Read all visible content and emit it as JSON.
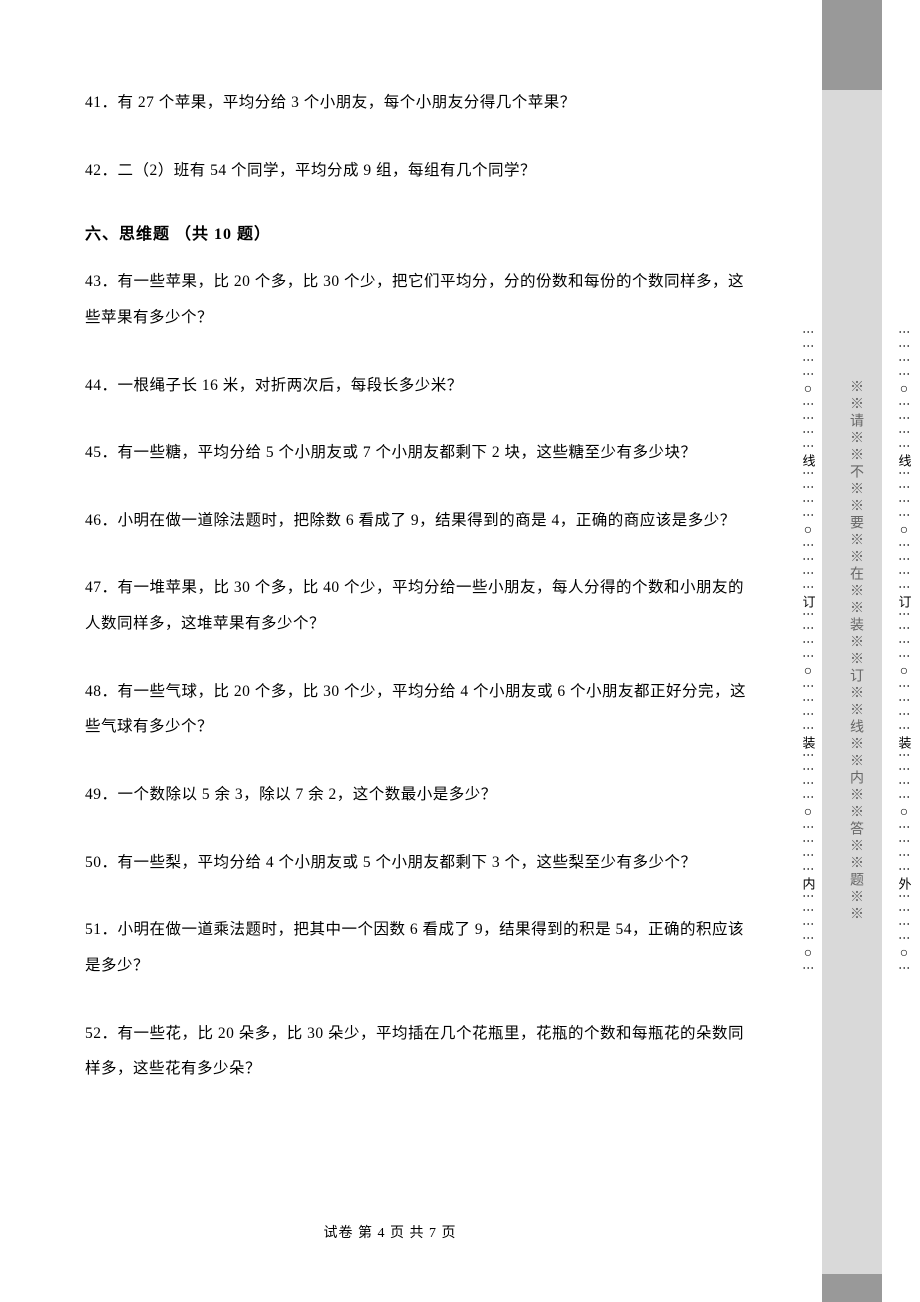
{
  "questions": {
    "q41": "41．有 27 个苹果，平均分给 3 个小朋友，每个小朋友分得几个苹果？",
    "q42": "42．二（2）班有 54 个同学，平均分成 9 组，每组有几个同学？",
    "section_title": "六、思维题 （共 10 题）",
    "q43": "43．有一些苹果，比 20 个多，比 30 个少，把它们平均分，分的份数和每份的个数同样多，这些苹果有多少个？",
    "q44": "44．一根绳子长 16 米，对折两次后，每段长多少米？",
    "q45": "45．有一些糖，平均分给 5 个小朋友或 7 个小朋友都剩下 2 块，这些糖至少有多少块？",
    "q46": "46．小明在做一道除法题时，把除数 6 看成了 9，结果得到的商是 4，正确的商应该是多少？",
    "q47": "47．有一堆苹果，比 30 个多，比 40 个少，平均分给一些小朋友，每人分得的个数和小朋友的人数同样多，这堆苹果有多少个？",
    "q48": "48．有一些气球，比 20 个多，比 30 个少，平均分给 4 个小朋友或 6 个小朋友都正好分完，这些气球有多少个？",
    "q49": "49．一个数除以 5 余 3，除以 7 余 2，这个数最小是多少？",
    "q50": "50．有一些梨，平均分给 4 个小朋友或 5 个小朋友都剩下 3 个，这些梨至少有多少个？",
    "q51": "51．小明在做一道乘法题时，把其中一个因数 6 看成了 9，结果得到的积是 54，正确的积应该是多少？",
    "q52": "52．有一些花，比 20 朵多，比 30 朵少，平均插在几个花瓶里，花瓶的个数和每瓶花的朵数同样多，这些花有多少朵？"
  },
  "footer": "试卷 第 4 页 共 7 页",
  "binding": {
    "warning": "※※请※※不※※要※※在※※装※※订※※线※※内※※答※※题※※",
    "inner_label": "内",
    "outer_label": "外",
    "zhuang": "装",
    "ding": "订",
    "xian": "线"
  },
  "colors": {
    "text": "#000000",
    "background": "#ffffff",
    "gray_strip": "#d9d9d9",
    "gray_dark": "#999999",
    "warning_text": "#666666"
  }
}
